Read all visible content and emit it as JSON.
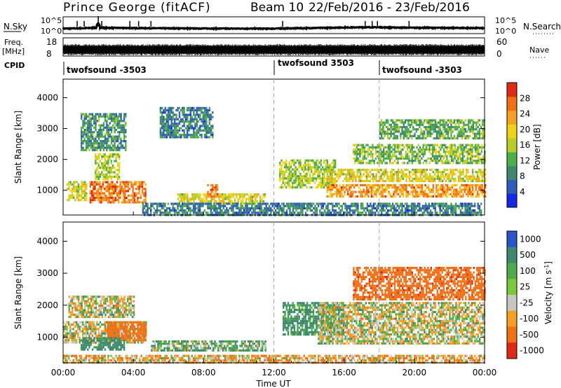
{
  "header": {
    "station": "Prince George (fitACF)",
    "beam": "Beam 10",
    "date_range": "22/Feb/2016 - 23/Feb/2016"
  },
  "chart_data": [
    {
      "type": "line",
      "panel": "noise",
      "left_label": "N.Sky",
      "right_label": "N.Search",
      "left_ticks": [
        "10^5",
        "10^0"
      ],
      "right_ticks": [
        "10^5",
        "10^0"
      ],
      "scale": "log",
      "ylim": [
        1,
        100000
      ],
      "x": [
        0,
        1,
        1.9,
        2,
        2.1,
        4,
        6,
        8,
        10,
        12,
        14,
        16,
        17.5,
        18,
        20,
        22,
        24
      ],
      "values": [
        20,
        25,
        40,
        1500,
        40,
        30,
        25,
        22,
        20,
        20,
        30,
        50,
        60,
        55,
        40,
        35,
        30
      ],
      "spike_hours": [
        0.8,
        1.2,
        2.0,
        2.2,
        3.8,
        4.3,
        5.0,
        12.5,
        17.2,
        17.6,
        17.9,
        19.7
      ]
    },
    {
      "type": "line",
      "panel": "frequency",
      "left_label": "Freq.",
      "left_unit": "[MHz]",
      "right_label": "Nave",
      "left_ticks": [
        "18",
        "8"
      ],
      "right_ticks": [
        "60",
        "0"
      ],
      "ylim": [
        8,
        18
      ],
      "x": [
        0,
        24
      ],
      "values": [
        10,
        10
      ]
    },
    {
      "type": "table",
      "panel": "cpid",
      "label": "CPID",
      "segments": [
        {
          "start": 0,
          "end": 12,
          "text": "twofsound -3503"
        },
        {
          "start": 12,
          "end": 18,
          "text": "twofsound 3503"
        },
        {
          "start": 18,
          "end": 24,
          "text": "twofsound -3503"
        }
      ]
    },
    {
      "type": "heatmap",
      "panel": "power",
      "ylabel": "Slant Range [km]",
      "yticks": [
        1000,
        2000,
        3000,
        4000
      ],
      "ylim": [
        200,
        4600
      ],
      "xlim": [
        0,
        24
      ],
      "colorbar_label": "Power [dB]",
      "colorbar_ticks": [
        4,
        8,
        12,
        16,
        20,
        24,
        28
      ],
      "colorbar_range": [
        0,
        32
      ],
      "colors": [
        "#1428e6",
        "#2e5cb8",
        "#3f8a6e",
        "#4fae4a",
        "#b9cc28",
        "#f0d21a",
        "#f5a020",
        "#f07018",
        "#e02a18"
      ],
      "features": [
        {
          "t0": 0.2,
          "t1": 1.3,
          "r0": 700,
          "r1": 1300,
          "level": 18
        },
        {
          "t0": 1.5,
          "t1": 4.7,
          "r0": 600,
          "r1": 1300,
          "level": 26
        },
        {
          "t0": 1.8,
          "t1": 3.2,
          "r0": 1400,
          "r1": 2200,
          "level": 16
        },
        {
          "t0": 1.0,
          "t1": 3.6,
          "r0": 2300,
          "r1": 3500,
          "level": 10
        },
        {
          "t0": 5.5,
          "t1": 8.5,
          "r0": 2700,
          "r1": 3700,
          "level": 8
        },
        {
          "t0": 6.5,
          "t1": 11.5,
          "r0": 600,
          "r1": 900,
          "level": 18
        },
        {
          "t0": 4.5,
          "t1": 23.8,
          "r0": 200,
          "r1": 600,
          "level": 8
        },
        {
          "t0": 8.2,
          "t1": 8.8,
          "r0": 800,
          "r1": 1200,
          "level": 26
        },
        {
          "t0": 12.3,
          "t1": 15.5,
          "r0": 1100,
          "r1": 2000,
          "level": 16
        },
        {
          "t0": 15.0,
          "t1": 24.0,
          "r0": 800,
          "r1": 1200,
          "level": 24
        },
        {
          "t0": 15.0,
          "t1": 24.0,
          "r0": 1300,
          "r1": 1700,
          "level": 18
        },
        {
          "t0": 16.5,
          "t1": 24.0,
          "r0": 1900,
          "r1": 2500,
          "level": 14
        },
        {
          "t0": 18.0,
          "t1": 24.0,
          "r0": 2700,
          "r1": 3300,
          "level": 12
        }
      ]
    },
    {
      "type": "heatmap",
      "panel": "velocity",
      "ylabel": "Slant Range [km]",
      "yticks": [
        1000,
        2000,
        3000,
        4000
      ],
      "ylim": [
        200,
        4600
      ],
      "xlim": [
        0,
        24
      ],
      "colorbar_label": "Velocity [m s^-1]",
      "colorbar_ticks": [
        1000,
        500,
        100,
        25,
        -25,
        -100,
        -500,
        -1000
      ],
      "colors": [
        "#2a55c8",
        "#3f8a6e",
        "#4faa4a",
        "#7cc83a",
        "#c8c8c0",
        "#f5a020",
        "#f07018",
        "#e02a18"
      ],
      "features": [
        {
          "t0": 0.0,
          "t1": 4.7,
          "r0": 800,
          "r1": 1500,
          "value": 0
        },
        {
          "t0": 0.3,
          "t1": 4.0,
          "r0": 1600,
          "r1": 2300,
          "value": 0
        },
        {
          "t0": 2.5,
          "t1": 4.7,
          "r0": 900,
          "r1": 1500,
          "value": -300
        },
        {
          "t0": 1.0,
          "t1": 3.5,
          "r0": 600,
          "r1": 1000,
          "value": 200
        },
        {
          "t0": 5.0,
          "t1": 11.5,
          "r0": 600,
          "r1": 900,
          "value": 80
        },
        {
          "t0": 12.5,
          "t1": 16.0,
          "r0": 1100,
          "r1": 2100,
          "value": 150
        },
        {
          "t0": 14.5,
          "t1": 24.0,
          "r0": 800,
          "r1": 2100,
          "value": 0
        },
        {
          "t0": 16.5,
          "t1": 24.0,
          "r0": 2200,
          "r1": 3200,
          "value": -400
        },
        {
          "t0": 0.0,
          "t1": 24.0,
          "r0": 200,
          "r1": 450,
          "value": -60
        }
      ]
    }
  ],
  "x_axis": {
    "label": "Time UT",
    "ticks": [
      "00:00",
      "04:00",
      "08:00",
      "12:00",
      "16:00",
      "20:00",
      "00:00"
    ],
    "tick_hours": [
      0,
      4,
      8,
      12,
      16,
      20,
      24
    ],
    "dashed_hours": [
      12,
      18
    ]
  }
}
